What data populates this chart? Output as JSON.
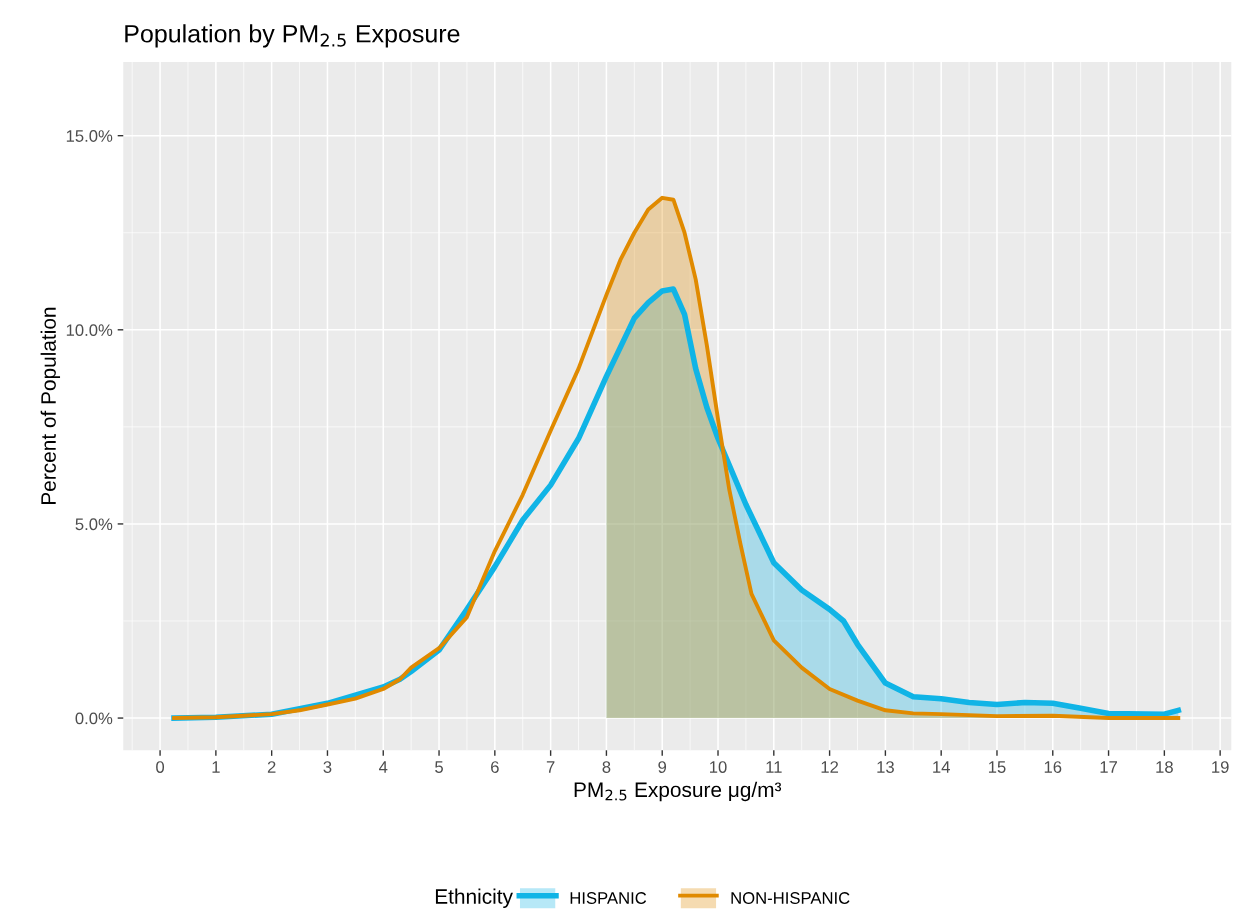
{
  "chart_data": {
    "type": "line",
    "title": "Population by PM$_{2.5}$ Exposure",
    "xlabel": "PM$_{2.5}$ Exposure μg/m³",
    "ylabel": "Percent of Population",
    "legend_title": "Ethnicity",
    "legend": "bottom",
    "grid": true,
    "marker": "none",
    "line_style": "solid",
    "xlim": [
      -0.66,
      19.2
    ],
    "xticks": [
      0,
      1,
      2,
      3,
      4,
      5,
      6,
      7,
      8,
      9,
      10,
      11,
      12,
      13,
      14,
      15,
      16,
      17,
      18,
      19
    ],
    "ylim": [
      -0.83,
      16.9
    ],
    "yticks": [
      {
        "value": 0,
        "label": "0.0%"
      },
      {
        "value": 5,
        "label": "5.0%"
      },
      {
        "value": 10,
        "label": "10.0%"
      },
      {
        "value": 15,
        "label": "15.0%"
      }
    ],
    "series": [
      {
        "type": "area",
        "color": "#10b4e6",
        "x": [
          8,
          8.5,
          8.75,
          9,
          9.2,
          9.4,
          9.6,
          9.8,
          10,
          10.5,
          11,
          11.5,
          12,
          12.25,
          12.5,
          13,
          13.5,
          14,
          14.5,
          15,
          15.5,
          16,
          16.5,
          17,
          18,
          18.25
        ],
        "values": [
          8.8,
          10.3,
          10.7,
          11.0,
          11.05,
          10.4,
          9.0,
          8.0,
          7.2,
          5.5,
          4.0,
          3.3,
          2.8,
          2.5,
          1.9,
          0.9,
          0.55,
          0.5,
          0.4,
          0.35,
          0.4,
          0.38,
          0.25,
          0.12,
          0.1,
          0.2
        ]
      },
      {
        "type": "area",
        "color": "#e08a00",
        "x": [
          8,
          8.25,
          8.5,
          8.75,
          9,
          9.2,
          9.4,
          9.6,
          9.8,
          10,
          10.2,
          10.4,
          10.6,
          11,
          11.5,
          12,
          12.5,
          13,
          13.5,
          14,
          15,
          16,
          17,
          18.25
        ],
        "values": [
          10.9,
          11.8,
          12.5,
          13.1,
          13.4,
          13.35,
          12.5,
          11.3,
          9.6,
          7.7,
          5.9,
          4.5,
          3.2,
          2.0,
          1.3,
          0.75,
          0.45,
          0.2,
          0.12,
          0.1,
          0.05,
          0.06,
          0.0,
          0.0
        ]
      },
      {
        "name": "HISPANIC",
        "color": "#10b4e6",
        "x": [
          0.25,
          1,
          2,
          3,
          4,
          4.3,
          4.5,
          5,
          5.5,
          6,
          6.5,
          7,
          7.5,
          8,
          8.5,
          8.75,
          9,
          9.2,
          9.4,
          9.6,
          9.8,
          10,
          10.5,
          11,
          11.5,
          12,
          12.25,
          12.5,
          13,
          13.5,
          14,
          14.5,
          15,
          15.5,
          16,
          16.5,
          17,
          18,
          18.25
        ],
        "values": [
          0,
          0.02,
          0.1,
          0.38,
          0.8,
          1.0,
          1.2,
          1.75,
          2.8,
          3.9,
          5.1,
          6.0,
          7.2,
          8.8,
          10.3,
          10.7,
          11.0,
          11.05,
          10.4,
          9.0,
          8.0,
          7.2,
          5.5,
          4.0,
          3.3,
          2.8,
          2.5,
          1.9,
          0.9,
          0.55,
          0.5,
          0.4,
          0.35,
          0.4,
          0.38,
          0.25,
          0.12,
          0.1,
          0.2
        ]
      },
      {
        "name": "NON-HISPANIC",
        "color": "#e08a00",
        "x": [
          0.25,
          1,
          2,
          2.5,
          3,
          3.5,
          4,
          4.3,
          4.5,
          5,
          5.5,
          6,
          6.5,
          7,
          7.5,
          8,
          8.25,
          8.5,
          8.75,
          9,
          9.2,
          9.4,
          9.6,
          9.8,
          10,
          10.2,
          10.4,
          10.6,
          11,
          11.5,
          12,
          12.5,
          13,
          13.5,
          14,
          15,
          16,
          17,
          18.25
        ],
        "values": [
          0,
          0.02,
          0.1,
          0.2,
          0.35,
          0.5,
          0.75,
          1.0,
          1.3,
          1.8,
          2.6,
          4.3,
          5.75,
          7.4,
          9.0,
          10.9,
          11.8,
          12.5,
          13.1,
          13.4,
          13.35,
          12.5,
          11.3,
          9.6,
          7.7,
          5.9,
          4.5,
          3.2,
          2.0,
          1.3,
          0.75,
          0.45,
          0.2,
          0.12,
          0.1,
          0.05,
          0.06,
          0.0,
          0.0
        ]
      }
    ]
  }
}
